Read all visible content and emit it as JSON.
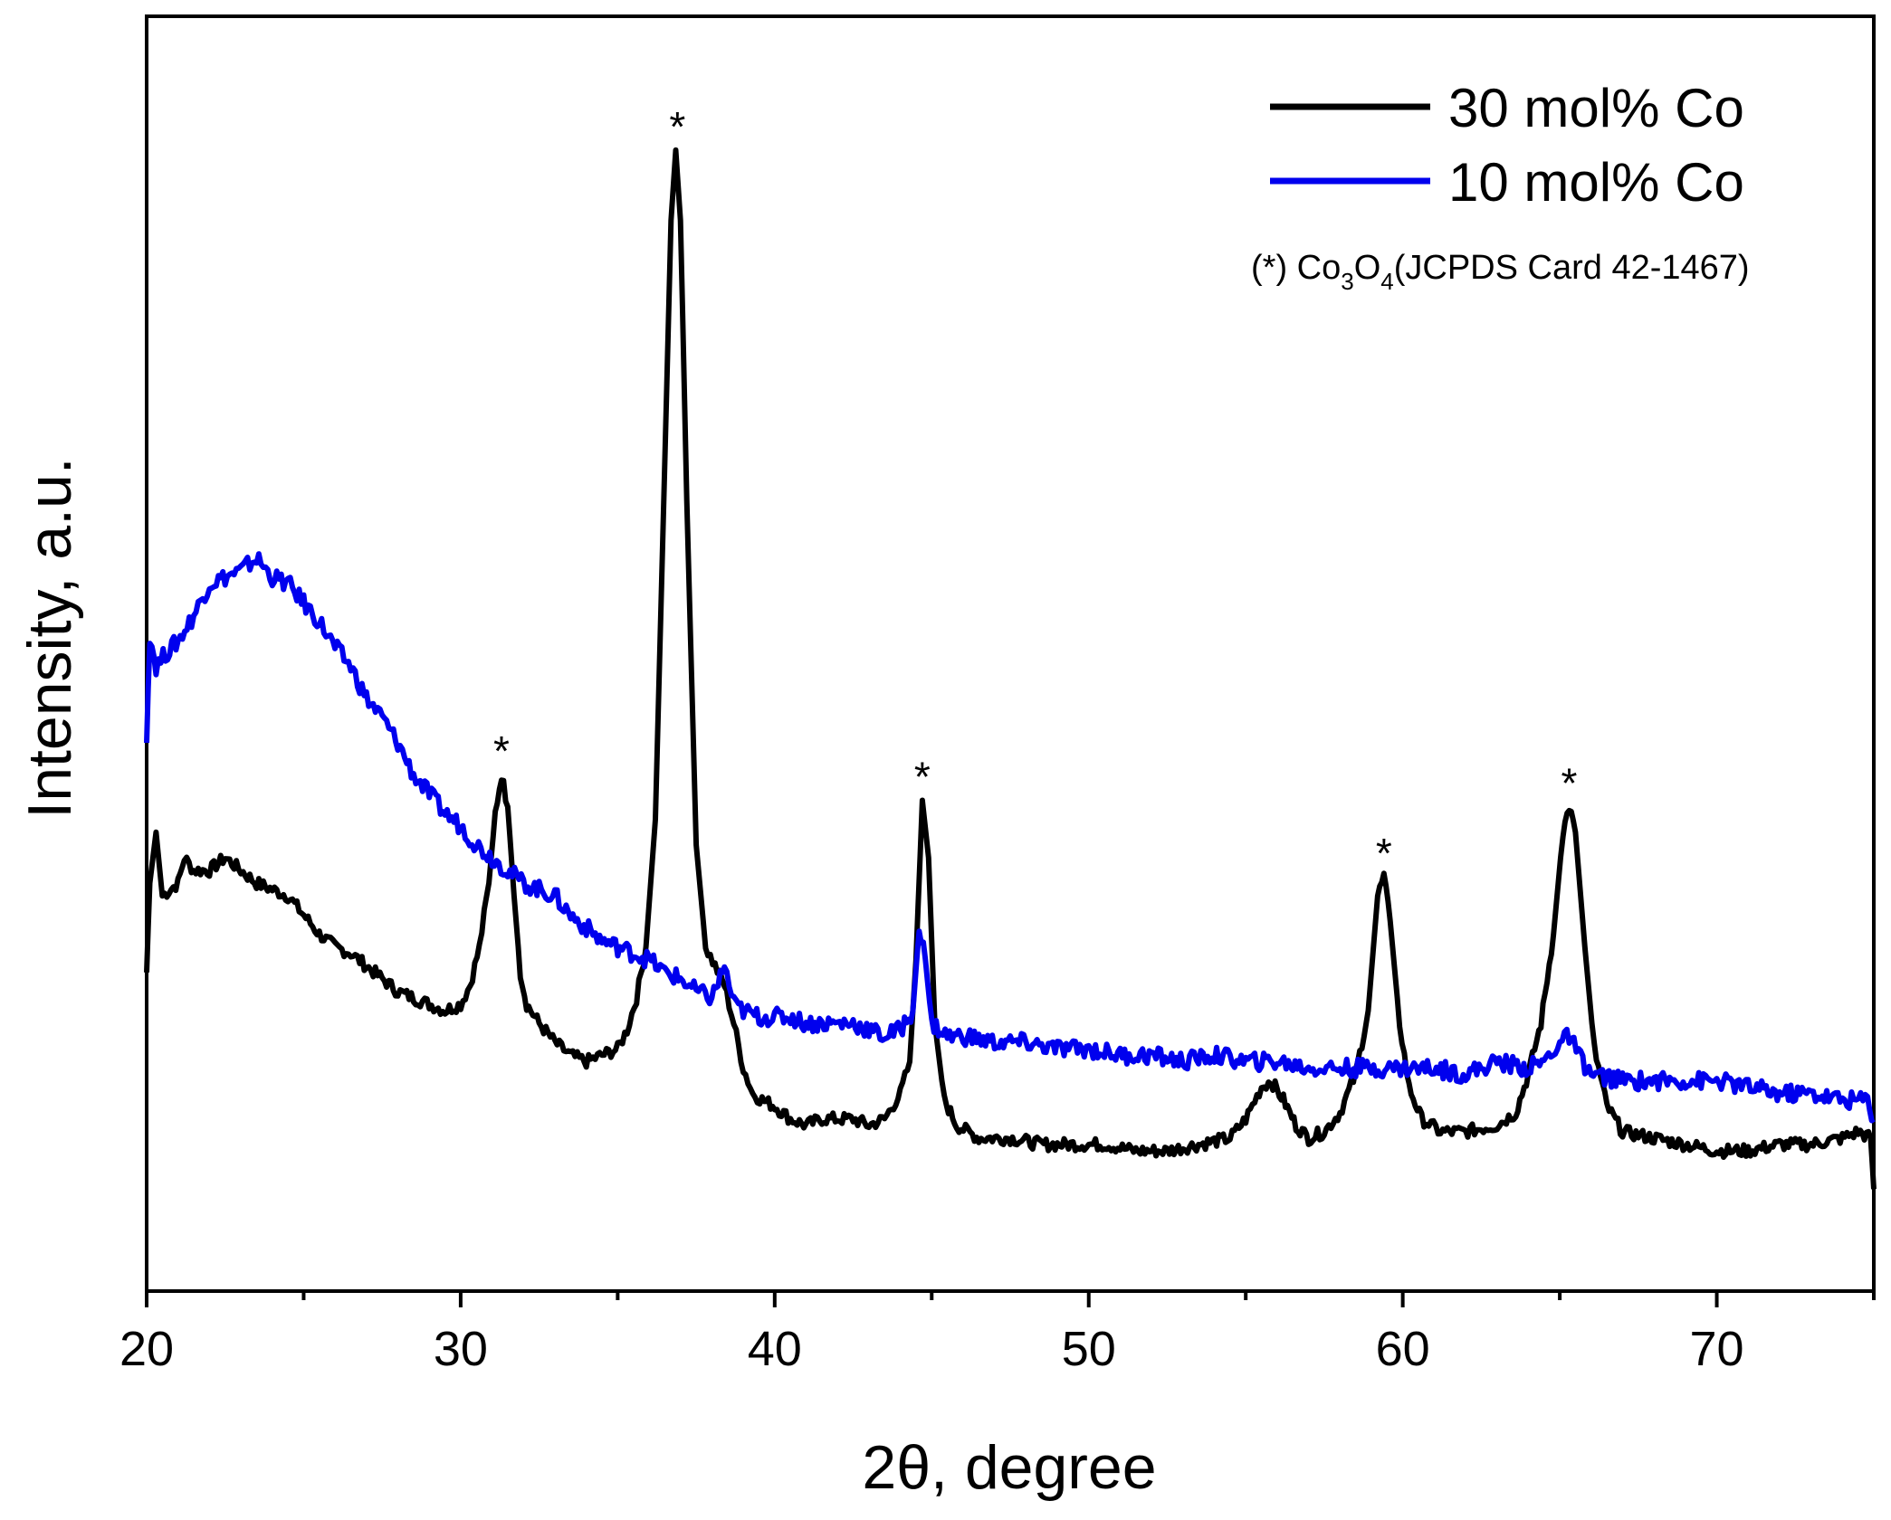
{
  "chart_data": {
    "type": "line",
    "xlabel": "2θ, degree",
    "ylabel": "Intensity, a.u.",
    "xlim": [
      20,
      75
    ],
    "ylim": [
      0,
      100
    ],
    "y_ticks_labeled": false,
    "x_ticks": [
      20,
      30,
      40,
      50,
      60,
      70
    ],
    "x_tick_labels": [
      "20",
      "30",
      "40",
      "50",
      "60",
      "70"
    ],
    "x_minor_ticks": [
      25,
      35,
      45,
      55,
      65,
      75
    ],
    "legend_position": "top-right",
    "grid": false,
    "series": [
      {
        "name": "30 mol% Co",
        "color": "#000000",
        "points": [
          [
            20.0,
            25
          ],
          [
            20.1,
            32
          ],
          [
            20.3,
            36
          ],
          [
            20.5,
            31
          ],
          [
            21.0,
            32
          ],
          [
            21.2,
            34
          ],
          [
            21.5,
            33
          ],
          [
            22.0,
            33
          ],
          [
            22.5,
            34
          ],
          [
            23.0,
            33
          ],
          [
            23.5,
            32
          ],
          [
            24.0,
            31.5
          ],
          [
            24.5,
            31
          ],
          [
            25.0,
            29.5
          ],
          [
            25.5,
            28
          ],
          [
            26.0,
            27
          ],
          [
            26.5,
            26.5
          ],
          [
            27.0,
            25.5
          ],
          [
            27.5,
            24.5
          ],
          [
            28.0,
            23.5
          ],
          [
            28.5,
            23
          ],
          [
            29.0,
            22.5
          ],
          [
            29.5,
            22
          ],
          [
            30.0,
            22.5
          ],
          [
            30.3,
            24
          ],
          [
            30.6,
            27
          ],
          [
            30.9,
            32
          ],
          [
            31.1,
            37.5
          ],
          [
            31.3,
            40.5
          ],
          [
            31.5,
            38
          ],
          [
            31.7,
            31
          ],
          [
            31.9,
            25
          ],
          [
            32.1,
            22.5
          ],
          [
            32.5,
            21
          ],
          [
            33.0,
            19.5
          ],
          [
            33.5,
            18.5
          ],
          [
            34.0,
            18
          ],
          [
            34.5,
            18.5
          ],
          [
            35.0,
            19
          ],
          [
            35.3,
            20.5
          ],
          [
            35.6,
            23
          ],
          [
            35.9,
            27
          ],
          [
            36.2,
            37
          ],
          [
            36.5,
            65
          ],
          [
            36.7,
            84
          ],
          [
            36.85,
            89.5
          ],
          [
            37.0,
            84
          ],
          [
            37.2,
            62
          ],
          [
            37.5,
            35
          ],
          [
            37.8,
            27
          ],
          [
            38.1,
            25.5
          ],
          [
            38.4,
            24
          ],
          [
            38.7,
            21
          ],
          [
            39.0,
            17.5
          ],
          [
            39.3,
            15.5
          ],
          [
            39.6,
            15
          ],
          [
            40.0,
            14.5
          ],
          [
            40.5,
            13.5
          ],
          [
            41.0,
            13
          ],
          [
            41.5,
            13.5
          ],
          [
            42.0,
            13.5
          ],
          [
            42.5,
            13.5
          ],
          [
            43.0,
            13
          ],
          [
            43.5,
            13.5
          ],
          [
            44.0,
            15.5
          ],
          [
            44.3,
            18
          ],
          [
            44.5,
            26
          ],
          [
            44.7,
            38.5
          ],
          [
            44.9,
            34
          ],
          [
            45.1,
            21
          ],
          [
            45.4,
            15
          ],
          [
            45.8,
            13
          ],
          [
            46.5,
            12
          ],
          [
            47.5,
            12
          ],
          [
            48.5,
            11.5
          ],
          [
            49.5,
            11.5
          ],
          [
            50.5,
            11.5
          ],
          [
            51.5,
            11
          ],
          [
            52.5,
            11
          ],
          [
            53.5,
            11.5
          ],
          [
            54.5,
            12
          ],
          [
            55.0,
            13.5
          ],
          [
            55.5,
            16
          ],
          [
            55.8,
            16.5
          ],
          [
            56.2,
            15
          ],
          [
            56.6,
            13
          ],
          [
            57.0,
            12
          ],
          [
            57.5,
            12.5
          ],
          [
            58.0,
            14
          ],
          [
            58.5,
            17
          ],
          [
            58.9,
            22
          ],
          [
            59.2,
            31
          ],
          [
            59.4,
            32.5
          ],
          [
            59.6,
            29
          ],
          [
            59.9,
            21
          ],
          [
            60.2,
            16
          ],
          [
            60.6,
            13.5
          ],
          [
            61.2,
            12.5
          ],
          [
            62.0,
            12.5
          ],
          [
            63.0,
            13
          ],
          [
            63.6,
            14
          ],
          [
            64.0,
            17
          ],
          [
            64.4,
            21
          ],
          [
            64.8,
            28
          ],
          [
            65.1,
            36
          ],
          [
            65.3,
            38
          ],
          [
            65.5,
            36
          ],
          [
            65.8,
            27
          ],
          [
            66.1,
            19
          ],
          [
            66.5,
            14.5
          ],
          [
            67.0,
            12.5
          ],
          [
            68.0,
            12
          ],
          [
            69.0,
            11.5
          ],
          [
            70.0,
            11
          ],
          [
            71.0,
            11
          ],
          [
            72.0,
            11.5
          ],
          [
            73.0,
            11.5
          ],
          [
            74.0,
            12
          ],
          [
            74.5,
            12.5
          ],
          [
            74.9,
            12
          ],
          [
            75.0,
            8
          ]
        ]
      },
      {
        "name": "10 mol% Co",
        "color": "#0000ee",
        "points": [
          [
            20.0,
            43
          ],
          [
            20.1,
            51.5
          ],
          [
            20.3,
            49
          ],
          [
            20.6,
            50
          ],
          [
            21.0,
            51
          ],
          [
            21.5,
            53
          ],
          [
            22.0,
            55.5
          ],
          [
            22.5,
            56
          ],
          [
            23.0,
            56.5
          ],
          [
            23.5,
            57.5
          ],
          [
            24.0,
            56
          ],
          [
            24.5,
            55.5
          ],
          [
            25.0,
            54
          ],
          [
            25.5,
            52.5
          ],
          [
            26.0,
            50.5
          ],
          [
            26.5,
            49
          ],
          [
            27.0,
            46.5
          ],
          [
            27.5,
            45
          ],
          [
            28.0,
            43
          ],
          [
            28.5,
            40.5
          ],
          [
            29.0,
            39
          ],
          [
            29.5,
            37.5
          ],
          [
            30.0,
            36.5
          ],
          [
            30.5,
            35
          ],
          [
            31.0,
            34
          ],
          [
            31.5,
            33
          ],
          [
            32.0,
            32
          ],
          [
            32.5,
            31.5
          ],
          [
            33.0,
            31
          ],
          [
            33.5,
            29.5
          ],
          [
            34.0,
            28.5
          ],
          [
            34.5,
            27.5
          ],
          [
            35.0,
            27
          ],
          [
            35.5,
            26.5
          ],
          [
            36.0,
            26
          ],
          [
            36.5,
            25
          ],
          [
            37.0,
            24.5
          ],
          [
            37.5,
            23.5
          ],
          [
            38.0,
            23
          ],
          [
            38.4,
            25.5
          ],
          [
            38.7,
            22.5
          ],
          [
            39.0,
            22
          ],
          [
            39.5,
            21.5
          ],
          [
            40.0,
            21.5
          ],
          [
            40.5,
            21.5
          ],
          [
            41.0,
            21
          ],
          [
            41.5,
            21
          ],
          [
            42.0,
            21
          ],
          [
            42.5,
            21
          ],
          [
            43.0,
            20.5
          ],
          [
            43.5,
            20
          ],
          [
            44.0,
            20.5
          ],
          [
            44.4,
            22
          ],
          [
            44.6,
            28.5
          ],
          [
            44.8,
            26
          ],
          [
            45.0,
            21
          ],
          [
            45.5,
            20
          ],
          [
            46.0,
            20
          ],
          [
            47.0,
            19.5
          ],
          [
            48.0,
            19.5
          ],
          [
            49.0,
            19
          ],
          [
            50.0,
            19
          ],
          [
            51.0,
            18.5
          ],
          [
            52.0,
            18.5
          ],
          [
            53.0,
            18
          ],
          [
            54.0,
            18.5
          ],
          [
            55.0,
            18
          ],
          [
            56.0,
            18
          ],
          [
            57.0,
            17.5
          ],
          [
            58.0,
            17.5
          ],
          [
            59.0,
            17.5
          ],
          [
            60.0,
            17.5
          ],
          [
            61.0,
            17.5
          ],
          [
            62.0,
            17
          ],
          [
            63.0,
            18
          ],
          [
            64.0,
            17.5
          ],
          [
            64.5,
            18
          ],
          [
            65.0,
            19.5
          ],
          [
            65.3,
            20
          ],
          [
            65.6,
            18.5
          ],
          [
            66.0,
            17
          ],
          [
            67.0,
            16.5
          ],
          [
            68.0,
            16.5
          ],
          [
            69.0,
            16.5
          ],
          [
            70.0,
            16.5
          ],
          [
            71.0,
            16
          ],
          [
            72.0,
            15.5
          ],
          [
            73.0,
            15.5
          ],
          [
            74.0,
            15
          ],
          [
            74.8,
            15
          ],
          [
            75.0,
            13.5
          ]
        ]
      }
    ],
    "annotations": [
      {
        "text": "*",
        "x": 31.3,
        "y": 42.5
      },
      {
        "text": "*",
        "x": 36.9,
        "y": 91.5
      },
      {
        "text": "*",
        "x": 44.7,
        "y": 40.5
      },
      {
        "text": "*",
        "x": 59.4,
        "y": 34.5
      },
      {
        "text": "*",
        "x": 65.3,
        "y": 40
      }
    ],
    "note": {
      "prefix": "(*) Co",
      "sub1": "3",
      "mid": "O",
      "sub2": "4",
      "suffix": "(JCPDS Card 42-1467)"
    }
  }
}
